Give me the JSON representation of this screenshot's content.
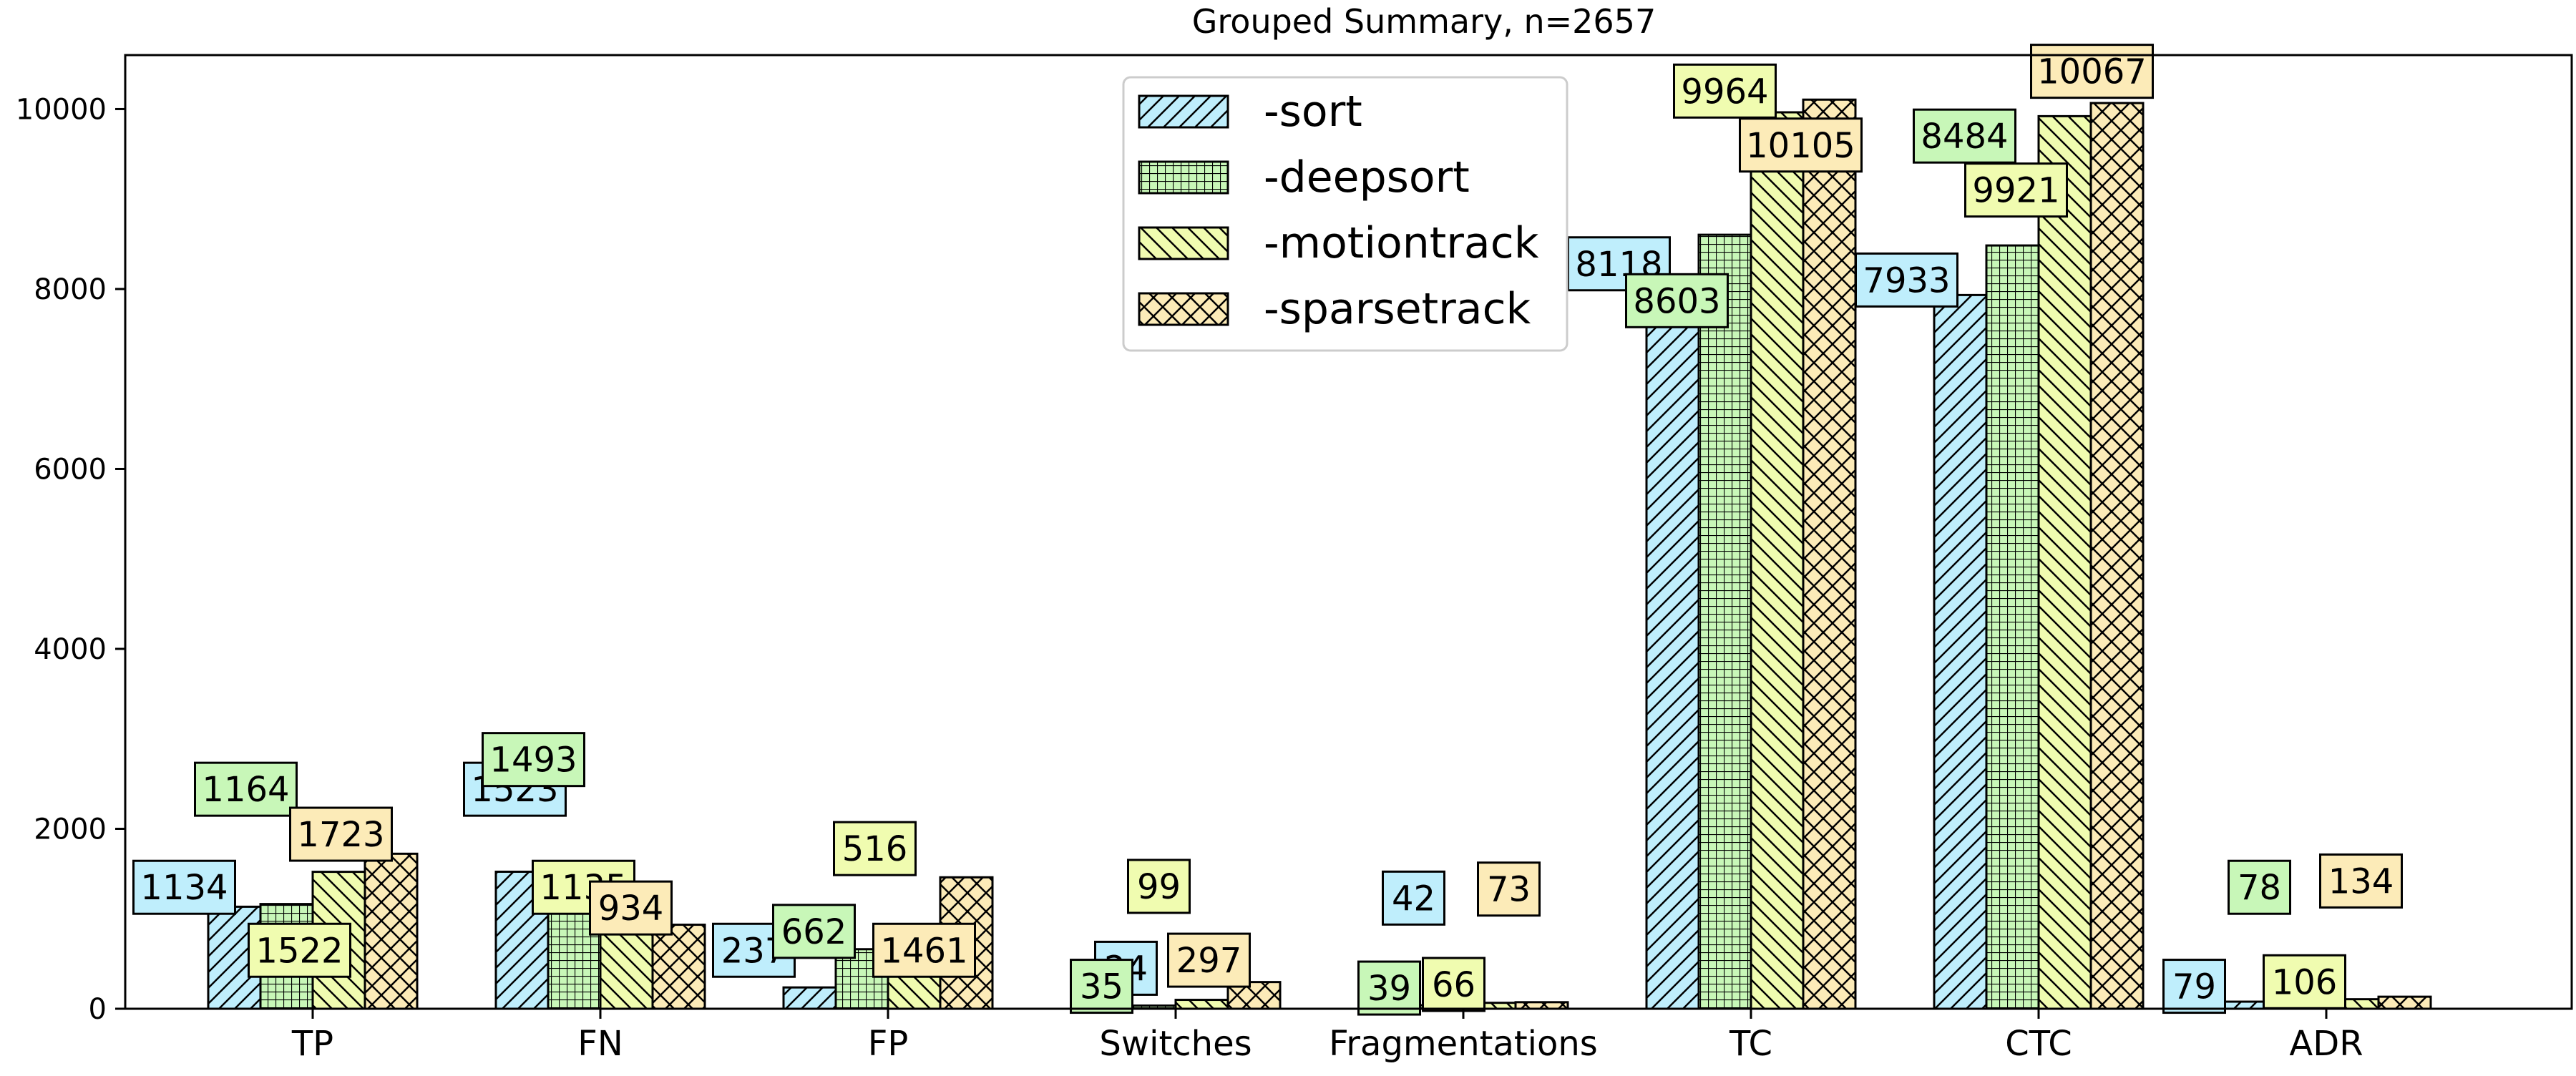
{
  "chart_data": {
    "type": "bar",
    "title": "Grouped Summary, n=2657",
    "xlabel": "",
    "ylabel": "",
    "categories": [
      "TP",
      "FN",
      "FP",
      "Switches",
      "Fragmentations",
      "TC",
      "CTC",
      "ADR"
    ],
    "ylim": [
      0,
      10600
    ],
    "yticks": [
      0,
      2000,
      4000,
      6000,
      8000,
      10000
    ],
    "grid": false,
    "legend_position": "top-center",
    "series": [
      {
        "name": "-sort",
        "color": "#bfeefc",
        "hatch": "diagonal-forward",
        "values": [
          1134,
          1523,
          237,
          24,
          42,
          8118,
          7933,
          79
        ]
      },
      {
        "name": "-deepsort",
        "color": "#c8f7b8",
        "hatch": "grid",
        "values": [
          1164,
          1493,
          662,
          35,
          39,
          8603,
          8484,
          78
        ]
      },
      {
        "name": "-motiontrack",
        "color": "#f0fcb0",
        "hatch": "diagonal-back",
        "values": [
          1522,
          1135,
          516,
          99,
          66,
          9964,
          9921,
          106
        ]
      },
      {
        "name": "-sparsetrack",
        "color": "#fcebb8",
        "hatch": "crosshatch",
        "values": [
          1723,
          934,
          1461,
          297,
          73,
          10105,
          10067,
          134
        ]
      }
    ]
  }
}
